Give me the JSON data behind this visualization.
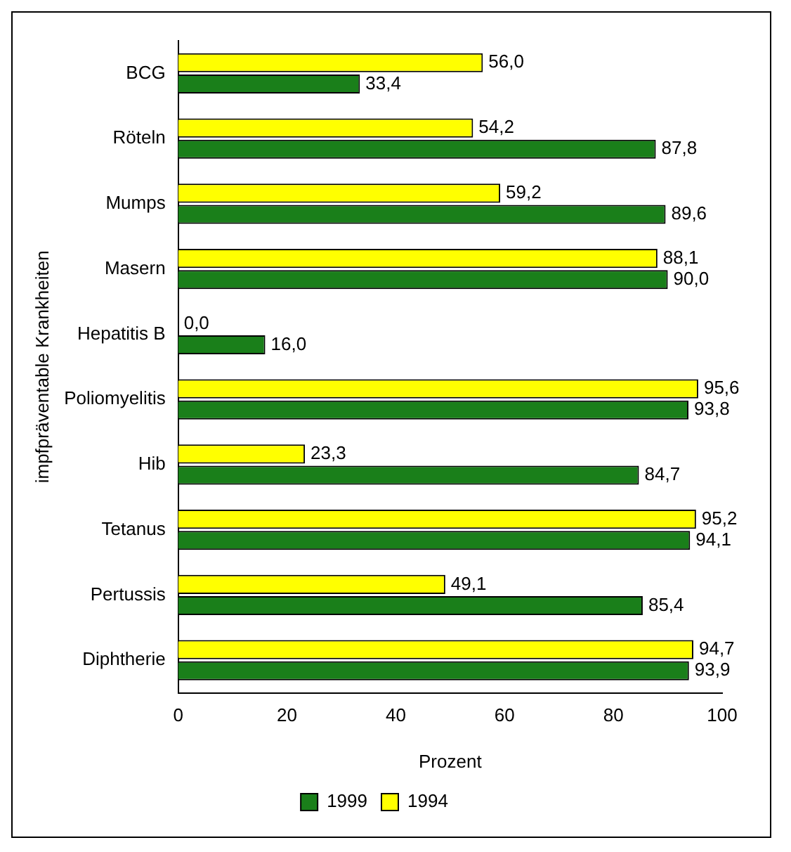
{
  "chart_data": {
    "type": "bar",
    "orientation": "horizontal",
    "xlabel": "Prozent",
    "ylabel": "impfpräventable Krankheiten",
    "categories": [
      "BCG",
      "Röteln",
      "Mumps",
      "Masern",
      "Hepatitis B",
      "Poliomyelitis",
      "Hib",
      "Tetanus",
      "Pertussis",
      "Diphtherie"
    ],
    "series": [
      {
        "name": "1994",
        "color": "#ffff00",
        "values": [
          56.0,
          54.2,
          59.2,
          88.1,
          0.0,
          95.6,
          23.3,
          95.2,
          49.1,
          94.7
        ],
        "value_labels": [
          "56,0",
          "54,2",
          "59,2",
          "88,1",
          "0,0",
          "95,6",
          "23,3",
          "95,2",
          "49,1",
          "94,7"
        ]
      },
      {
        "name": "1999",
        "color": "#1a7f1a",
        "values": [
          33.4,
          87.8,
          89.6,
          90.0,
          16.0,
          93.8,
          84.7,
          94.1,
          85.4,
          93.9
        ],
        "value_labels": [
          "33,4",
          "87,8",
          "89,6",
          "90,0",
          "16,0",
          "93,8",
          "84,7",
          "94,1",
          "85,4",
          "93,9"
        ]
      }
    ],
    "xlim": [
      0,
      100
    ],
    "xticks": [
      0,
      20,
      40,
      60,
      80,
      100
    ],
    "grid": false,
    "legend": "bottom"
  }
}
